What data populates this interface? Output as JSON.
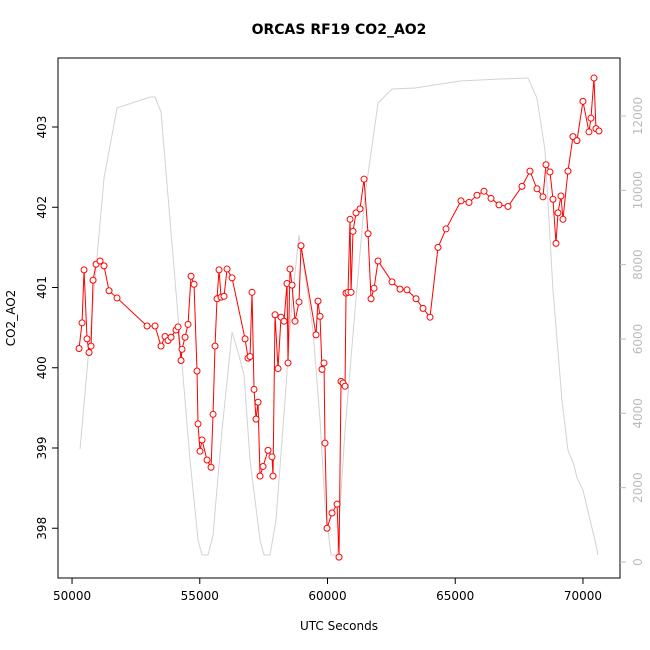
{
  "chart_data": {
    "type": "line",
    "title": "ORCAS RF19 CO2_AO2",
    "xlabel": "UTC Seconds",
    "ylabel": "CO2_AO2",
    "xlim": [
      49450,
      71450
    ],
    "xticks": [
      50000,
      55000,
      60000,
      65000,
      70000
    ],
    "ylim": [
      397.38,
      403.86
    ],
    "yticks": [
      398,
      399,
      400,
      401,
      402,
      403
    ],
    "y2lim": [
      -430,
      13560
    ],
    "y2ticks": [
      0,
      2000,
      4000,
      6000,
      8000,
      10000,
      12000
    ],
    "series": [
      {
        "color": "#d3d3d3",
        "axis": "y2",
        "x": [
          50313,
          51252,
          51761,
          53053,
          53248,
          53483,
          54031,
          54618,
          54931,
          55088,
          55323,
          55519,
          55871,
          56263,
          56498,
          56733,
          56967,
          57359,
          57515,
          57750,
          57985,
          58337,
          58611,
          58885,
          59120,
          59433,
          59707,
          59902,
          60138,
          60373,
          60686,
          61078,
          61469,
          61978,
          62526,
          63426,
          65187,
          66752,
          67848,
          68200,
          68513,
          68826,
          69178,
          69413,
          69648,
          69766,
          70000,
          70274,
          70470,
          70587
        ],
        "values": [
          3040,
          10331,
          12214,
          12510,
          12510,
          12107,
          7587,
          2745,
          592,
          188,
          188,
          726,
          3551,
          6188,
          5650,
          5031,
          2745,
          592,
          188,
          188,
          1130,
          4358,
          7049,
          8797,
          7721,
          6242,
          3820,
          1533,
          188,
          188,
          3551,
          6780,
          9874,
          12349,
          12725,
          12752,
          12941,
          12994,
          13021,
          12483,
          11084,
          7318,
          4358,
          3013,
          2610,
          2260,
          1937,
          1130,
          592,
          188
        ]
      },
      {
        "color": "#ff0000",
        "axis": "y",
        "marker": "circle",
        "x": [
          50274,
          50391,
          50470,
          50587,
          50665,
          50744,
          50822,
          50939,
          51096,
          51252,
          51448,
          51761,
          52935,
          53248,
          53483,
          53640,
          53757,
          53874,
          54070,
          54149,
          54266,
          54305,
          54423,
          54540,
          54657,
          54775,
          54892,
          54931,
          55010,
          55088,
          55284,
          55441,
          55519,
          55597,
          55675,
          55754,
          55832,
          55950,
          56067,
          56263,
          56772,
          56889,
          56967,
          57045,
          57124,
          57202,
          57280,
          57359,
          57476,
          57672,
          57828,
          57867,
          57946,
          58063,
          58180,
          58298,
          58415,
          58454,
          58533,
          58611,
          58728,
          58885,
          58963,
          59550,
          59628,
          59707,
          59785,
          59863,
          59902,
          59981,
          60177,
          60373,
          60451,
          60529,
          60608,
          60686,
          60725,
          60803,
          60882,
          60921,
          60999,
          61117,
          61273,
          61430,
          61587,
          61704,
          61822,
          61978,
          62526,
          62838,
          63112,
          63465,
          63739,
          64012,
          64326,
          64639,
          65226,
          65539,
          65852,
          66126,
          66400,
          66713,
          67065,
          67613,
          67926,
          68200,
          68435,
          68552,
          68709,
          68826,
          68944,
          69022,
          69139,
          69218,
          69413,
          69609,
          69766,
          70000,
          70235,
          70313,
          70431,
          70509,
          70627
        ],
        "values": [
          400.24,
          400.56,
          401.22,
          400.36,
          400.19,
          400.27,
          401.09,
          401.29,
          401.33,
          401.27,
          400.96,
          400.87,
          400.52,
          400.52,
          400.27,
          400.39,
          400.34,
          400.38,
          400.47,
          400.51,
          400.09,
          400.23,
          400.38,
          400.54,
          401.14,
          401.04,
          399.96,
          399.3,
          398.96,
          399.1,
          398.85,
          398.76,
          399.42,
          400.27,
          400.86,
          401.22,
          400.88,
          400.89,
          401.23,
          401.12,
          400.36,
          400.12,
          400.14,
          400.94,
          399.73,
          399.36,
          399.57,
          398.65,
          398.77,
          398.97,
          398.89,
          398.65,
          400.66,
          399.99,
          400.63,
          400.58,
          401.05,
          400.06,
          401.23,
          401.03,
          400.58,
          400.82,
          401.52,
          400.41,
          400.83,
          400.64,
          399.98,
          400.06,
          399.06,
          398.0,
          398.19,
          398.3,
          397.64,
          399.83,
          399.81,
          399.77,
          400.93,
          400.94,
          401.85,
          400.94,
          401.7,
          401.93,
          401.98,
          402.35,
          401.67,
          400.86,
          400.99,
          401.33,
          401.07,
          400.98,
          400.97,
          400.86,
          400.74,
          400.63,
          401.5,
          401.73,
          402.08,
          402.06,
          402.15,
          402.2,
          402.11,
          402.03,
          402.01,
          402.26,
          402.45,
          402.23,
          402.13,
          402.53,
          402.44,
          402.1,
          401.55,
          401.93,
          402.14,
          401.85,
          402.45,
          402.88,
          402.83,
          403.32,
          402.94,
          403.11,
          403.61,
          402.98,
          402.95
        ]
      }
    ]
  }
}
